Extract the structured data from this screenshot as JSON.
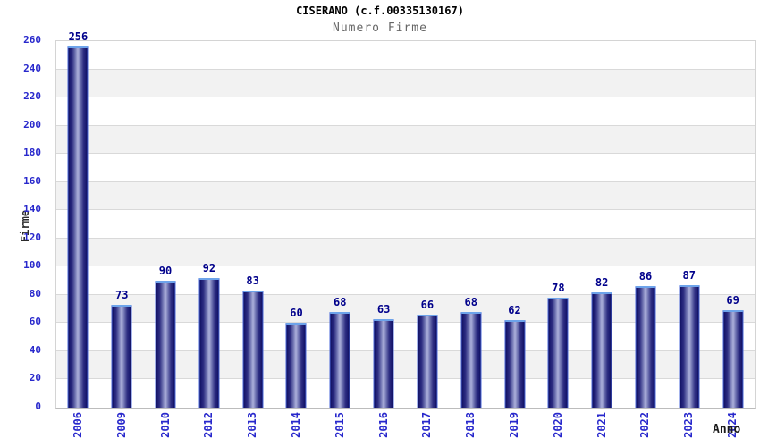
{
  "title": "CISERANO (c.f.00335130167)",
  "subtitle": "Numero Firme",
  "chart_data": {
    "type": "bar",
    "title": "CISERANO (c.f.00335130167)",
    "subtitle": "Numero Firme",
    "categories": [
      "2006",
      "2009",
      "2010",
      "2012",
      "2013",
      "2014",
      "2015",
      "2016",
      "2017",
      "2018",
      "2019",
      "2020",
      "2021",
      "2022",
      "2023",
      "2024"
    ],
    "values": [
      256,
      73,
      90,
      92,
      83,
      60,
      68,
      63,
      66,
      68,
      62,
      78,
      82,
      86,
      87,
      69
    ],
    "xlabel": "Anno",
    "ylabel": "Firme",
    "ylim": [
      0,
      260
    ],
    "ytick_step": 20,
    "grid": "horizontal",
    "legend": "none",
    "colors": {
      "bar_edge_dark": "#10105c",
      "bar_mid": "#2e2e82",
      "bar_center_light": "#a6aad6",
      "bar_side_border": "#4a67d8",
      "bar_top_border": "#6da3ea",
      "axis_tick_label": "#2828cc",
      "value_label": "#00008b",
      "band_gray": "#f2f2f2",
      "band_white": "#ffffff",
      "gridline": "#d9d9d9",
      "title_color": "#000000",
      "subtitle_color": "#666666",
      "axis_title_color": "#1a1a1a"
    }
  }
}
